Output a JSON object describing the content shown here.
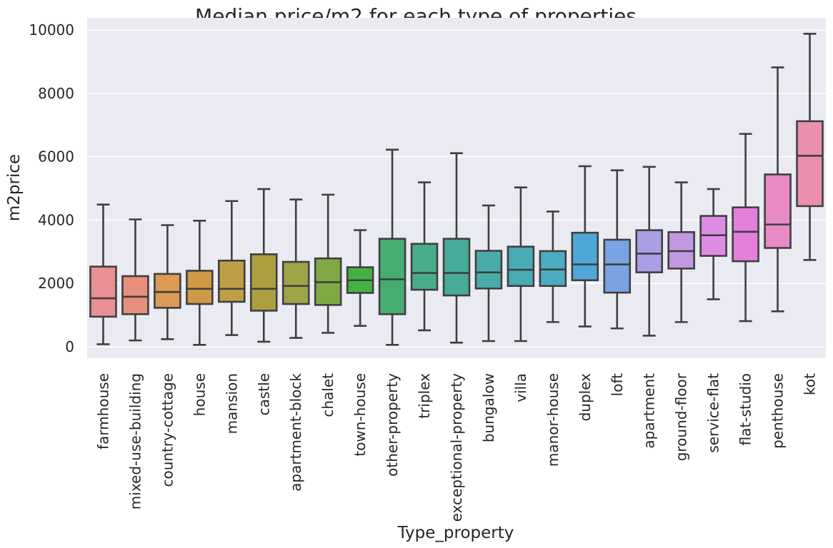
{
  "chart_data": {
    "type": "box",
    "title": "Median price/m2 for each type of properties",
    "xlabel": "Type_property",
    "ylabel": "m2price",
    "ylim": [
      -400,
      10400
    ],
    "yticks": [
      0,
      2000,
      4000,
      6000,
      8000,
      10000
    ],
    "grid": true,
    "categories": [
      {
        "name": "farmhouse",
        "color": "#ea8f93",
        "min": 80,
        "q1": 950,
        "median": 1530,
        "q3": 2530,
        "max": 4490
      },
      {
        "name": "mixed-use-building",
        "color": "#e8907c",
        "min": 200,
        "q1": 1030,
        "median": 1580,
        "q3": 2230,
        "max": 4020
      },
      {
        "name": "country-cottage",
        "color": "#dc9a55",
        "min": 240,
        "q1": 1230,
        "median": 1730,
        "q3": 2300,
        "max": 3840
      },
      {
        "name": "house",
        "color": "#cf9945",
        "min": 60,
        "q1": 1350,
        "median": 1830,
        "q3": 2400,
        "max": 3980
      },
      {
        "name": "mansion",
        "color": "#bf9e46",
        "min": 370,
        "q1": 1420,
        "median": 1830,
        "q3": 2720,
        "max": 4600
      },
      {
        "name": "castle",
        "color": "#ac9f3f",
        "min": 160,
        "q1": 1140,
        "median": 1830,
        "q3": 2920,
        "max": 4980
      },
      {
        "name": "apartment-block",
        "color": "#9ea548",
        "min": 280,
        "q1": 1350,
        "median": 1920,
        "q3": 2680,
        "max": 4650
      },
      {
        "name": "chalet",
        "color": "#80a843",
        "min": 440,
        "q1": 1320,
        "median": 2040,
        "q3": 2790,
        "max": 4800
      },
      {
        "name": "town-house",
        "color": "#45b145",
        "min": 660,
        "q1": 1700,
        "median": 2100,
        "q3": 2510,
        "max": 3680
      },
      {
        "name": "other-property",
        "color": "#45ad72",
        "min": 60,
        "q1": 1030,
        "median": 2130,
        "q3": 3410,
        "max": 6220
      },
      {
        "name": "triplex",
        "color": "#48ac8b",
        "min": 520,
        "q1": 1800,
        "median": 2330,
        "q3": 3250,
        "max": 5190
      },
      {
        "name": "exceptional-property",
        "color": "#48ab9a",
        "min": 130,
        "q1": 1620,
        "median": 2330,
        "q3": 3410,
        "max": 6110
      },
      {
        "name": "bungalow",
        "color": "#48aba7",
        "min": 180,
        "q1": 1840,
        "median": 2350,
        "q3": 3030,
        "max": 4460
      },
      {
        "name": "villa",
        "color": "#49abb4",
        "min": 180,
        "q1": 1920,
        "median": 2430,
        "q3": 3160,
        "max": 5030
      },
      {
        "name": "manor-house",
        "color": "#4bacc2",
        "min": 780,
        "q1": 1920,
        "median": 2440,
        "q3": 3020,
        "max": 4270
      },
      {
        "name": "duplex",
        "color": "#4ea7d8",
        "min": 640,
        "q1": 2100,
        "median": 2600,
        "q3": 3600,
        "max": 5700
      },
      {
        "name": "loft",
        "color": "#7aa3e3",
        "min": 580,
        "q1": 1710,
        "median": 2600,
        "q3": 3380,
        "max": 5570
      },
      {
        "name": "apartment",
        "color": "#a99fe4",
        "min": 350,
        "q1": 2350,
        "median": 2940,
        "q3": 3680,
        "max": 5680
      },
      {
        "name": "ground-floor",
        "color": "#c298e0",
        "min": 780,
        "q1": 2470,
        "median": 3020,
        "q3": 3620,
        "max": 5190
      },
      {
        "name": "service-flat",
        "color": "#dc8ce3",
        "min": 1500,
        "q1": 2870,
        "median": 3520,
        "q3": 4130,
        "max": 4980
      },
      {
        "name": "flat-studio",
        "color": "#e37fd8",
        "min": 810,
        "q1": 2700,
        "median": 3630,
        "q3": 4400,
        "max": 6720
      },
      {
        "name": "penthouse",
        "color": "#e88ac3",
        "min": 1120,
        "q1": 3120,
        "median": 3860,
        "q3": 5440,
        "max": 8820
      },
      {
        "name": "kot",
        "color": "#ea8fb0",
        "min": 2740,
        "q1": 4440,
        "median": 6030,
        "q3": 7120,
        "max": 9880
      }
    ]
  }
}
